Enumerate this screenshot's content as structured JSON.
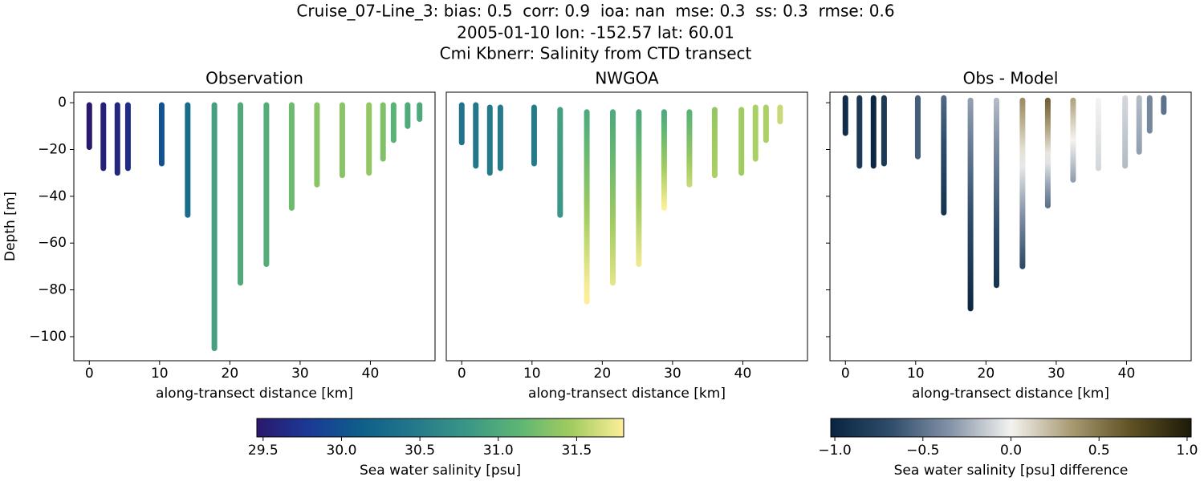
{
  "suptitle": [
    "Cruise_07-Line_3: bias: 0.5  corr: 0.9  ioa: nan  mse: 0.3  ss: 0.3  rmse: 0.6",
    "2005-01-10 lon: -152.57 lat: 60.01",
    "Cmi Kbnerr: Salinity from CTD transect"
  ],
  "chart_data": [
    {
      "type": "column-scatter",
      "title": "Observation",
      "xlabel": "along-transect distance [km]",
      "ylabel": "Depth [m]",
      "xlim": [
        -2.2,
        49.2
      ],
      "xticks": [
        0,
        10,
        20,
        30,
        40
      ],
      "ylim": [
        -110.3,
        4.5
      ],
      "yticks": [
        0,
        {
          "value": -20,
          "label": "−20"
        },
        {
          "value": -40,
          "label": "−40"
        },
        {
          "value": -60,
          "label": "−60"
        },
        {
          "value": -80,
          "label": "−80"
        },
        {
          "value": -100,
          "label": "−100"
        }
      ],
      "x": [
        0,
        2,
        4,
        5.5,
        10.3,
        14,
        17.8,
        21.5,
        25.2,
        28.8,
        32.4,
        36,
        39.8,
        41.8,
        43.3,
        45.3,
        47
      ],
      "depth_top": [
        -1,
        -1,
        -1,
        -1,
        -1,
        -1,
        -1,
        -1,
        -1,
        -1,
        -1,
        -1,
        -1,
        -1,
        -1,
        -1,
        -1
      ],
      "depth_bottom": [
        -19,
        -28,
        -30,
        -28,
        -26,
        -48,
        -105,
        -77,
        -69,
        -45,
        -35,
        -31,
        -30,
        -24,
        -16,
        -10,
        -7
      ],
      "value_top": [
        29.45,
        29.55,
        29.6,
        29.65,
        30.0,
        30.3,
        30.9,
        31.0,
        31.05,
        31.2,
        31.35,
        31.35,
        31.4,
        31.3,
        31.1,
        31.0,
        31.0
      ],
      "value_bottom": [
        29.45,
        29.55,
        29.6,
        29.65,
        30.0,
        30.3,
        30.9,
        31.0,
        31.05,
        31.2,
        31.35,
        31.35,
        31.4,
        31.3,
        31.1,
        31.0,
        31.0
      ]
    },
    {
      "type": "column-scatter",
      "title": "NWGOA",
      "xlabel": "along-transect distance [km]",
      "xlim": [
        -2.2,
        49.2
      ],
      "xticks": [
        0,
        10,
        20,
        30,
        40
      ],
      "ylim": [
        -110.3,
        4.5
      ],
      "x": [
        0,
        2,
        4,
        5.5,
        10.3,
        14,
        17.8,
        21.5,
        25.2,
        28.8,
        32.4,
        36,
        39.8,
        41.8,
        43.3,
        45.3
      ],
      "depth_top": [
        -1,
        -1,
        -2,
        -2,
        -2,
        -3,
        -4,
        -4,
        -4,
        -4,
        -4,
        -3,
        -3,
        -2,
        -2,
        -2
      ],
      "depth_bottom": [
        -17,
        -27,
        -30,
        -28,
        -26,
        -48,
        -85,
        -77,
        -69,
        -45,
        -35,
        -31,
        -30,
        -24,
        -16,
        -8
      ],
      "value_top": [
        30.4,
        30.45,
        30.5,
        30.5,
        30.5,
        30.9,
        31.0,
        31.0,
        31.0,
        31.0,
        31.1,
        31.4,
        31.45,
        31.5,
        31.5,
        31.6
      ],
      "value_bottom": [
        30.4,
        30.45,
        30.5,
        30.5,
        30.5,
        30.8,
        31.85,
        31.7,
        31.75,
        31.8,
        31.6,
        31.5,
        31.45,
        31.5,
        31.5,
        31.6
      ]
    },
    {
      "type": "column-scatter",
      "title": "Obs - Model",
      "xlabel": "along-transect distance [km]",
      "xlim": [
        -2.2,
        49.2
      ],
      "xticks": [
        0,
        10,
        20,
        30,
        40
      ],
      "ylim": [
        -110.3,
        4.5
      ],
      "yticks_unlabeled": [
        0,
        -20,
        -40,
        -60,
        -80,
        -100
      ],
      "x": [
        0,
        2,
        4,
        5.5,
        10.3,
        14,
        17.8,
        21.5,
        25.2,
        28.8,
        32.4,
        36,
        39.8,
        41.8,
        43.3,
        45.3
      ],
      "depth_top": [
        2,
        2,
        2,
        2,
        2,
        2,
        1,
        1,
        1,
        1,
        1,
        1,
        2,
        2,
        2,
        2
      ],
      "depth_bottom": [
        -13,
        -27,
        -27,
        -26,
        -23,
        -47,
        -88,
        -78,
        -70,
        -44,
        -33,
        -28,
        -27,
        -21,
        -12,
        -4
      ],
      "value_top": [
        -0.95,
        -0.85,
        -1.0,
        -0.85,
        -0.6,
        -0.55,
        -0.3,
        -0.2,
        0.4,
        0.6,
        0.3,
        0.0,
        -0.1,
        -0.2,
        -0.4,
        -0.5
      ],
      "value_bottom": [
        -0.95,
        -0.85,
        -1.0,
        -0.85,
        -0.6,
        -0.9,
        -1.0,
        -0.9,
        -0.7,
        -0.5,
        -0.3,
        -0.1,
        -0.2,
        -0.3,
        -0.4,
        -0.5
      ]
    }
  ],
  "colorbars": [
    {
      "label": "Sea water salinity [psu]",
      "xlim": [
        29.46,
        31.8
      ],
      "xticks": [
        29.5,
        {
          "value": 30.0,
          "label": "30.0"
        },
        30.5,
        {
          "value": 31.0,
          "label": "31.0"
        },
        31.5
      ],
      "colormap": [
        "#2a186c",
        "#1b3a97",
        "#0e5f8a",
        "#24788a",
        "#3a9687",
        "#5db574",
        "#a2cc5f",
        "#fdef9a"
      ]
    },
    {
      "label": "Sea water salinity [psu] difference",
      "xlim": [
        -1.023,
        1.023
      ],
      "xticks": [
        {
          "value": -1.0,
          "label": "−1.0"
        },
        {
          "value": -0.5,
          "label": "−0.5"
        },
        {
          "value": 0.0,
          "label": "0.0"
        },
        {
          "value": 0.5,
          "label": "0.5"
        },
        {
          "value": 1.0,
          "label": "1.0"
        }
      ],
      "colormap": [
        "#08243f",
        "#2f4d6c",
        "#8594a8",
        "#f4f3f0",
        "#a89a72",
        "#5f5123",
        "#1c1a07"
      ]
    }
  ]
}
